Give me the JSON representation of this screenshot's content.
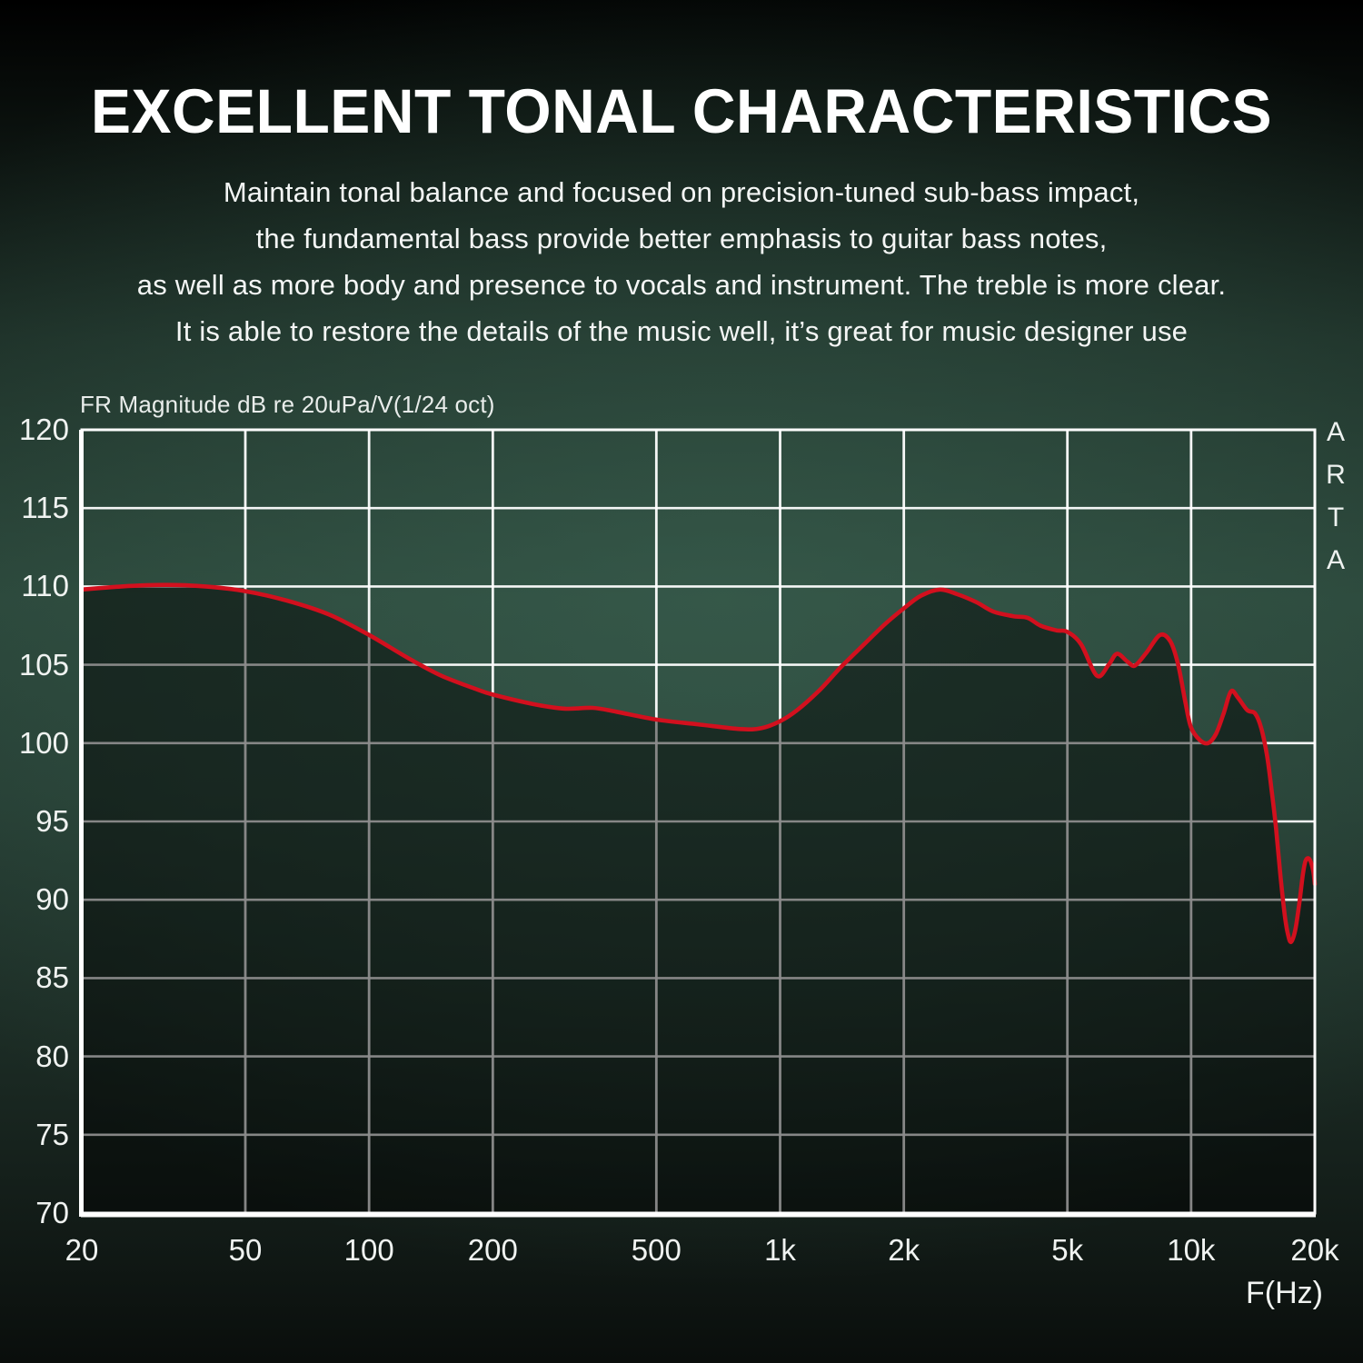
{
  "header": {
    "title": "EXCELLENT TONAL CHARACTERISTICS",
    "subtitle_lines": [
      "Maintain tonal balance and focused on precision-tuned sub-bass impact,",
      "the fundamental bass provide better emphasis to guitar bass notes,",
      "as well as more body and presence to vocals and instrument. The treble is more clear.",
      "It is able to restore the details of the music well, it’s great for music designer use"
    ]
  },
  "chart": {
    "top_label": "FR Magnitude dB re 20uPa/V(1/24 oct)",
    "x_axis_label": "F(Hz)",
    "watermark": "ARTA",
    "colors": {
      "curve": "#d2101e",
      "grid": "#ffffff",
      "under_curve_fill": "rgba(0,0,0,0.45)",
      "frame": "#ffffff"
    }
  },
  "chart_data": {
    "type": "line",
    "title": "FR Magnitude dB re 20uPa/V(1/24 oct)",
    "xlabel": "F(Hz)",
    "ylabel": "dB",
    "x_scale": "log",
    "xlim": [
      20,
      20000
    ],
    "ylim": [
      70,
      120
    ],
    "grid": true,
    "legend_position": "none",
    "x_ticks": [
      {
        "value": 20,
        "label": "20"
      },
      {
        "value": 50,
        "label": "50"
      },
      {
        "value": 100,
        "label": "100"
      },
      {
        "value": 200,
        "label": "200"
      },
      {
        "value": 500,
        "label": "500"
      },
      {
        "value": 1000,
        "label": "1k"
      },
      {
        "value": 2000,
        "label": "2k"
      },
      {
        "value": 5000,
        "label": "5k"
      },
      {
        "value": 10000,
        "label": "10k"
      },
      {
        "value": 20000,
        "label": "20k"
      }
    ],
    "y_ticks": [
      70,
      75,
      80,
      85,
      90,
      95,
      100,
      105,
      110,
      115,
      120
    ],
    "series": [
      {
        "name": "frequency-response",
        "color": "#d2101e",
        "points": [
          [
            20,
            109.8
          ],
          [
            25,
            110.0
          ],
          [
            32,
            110.1
          ],
          [
            40,
            110.0
          ],
          [
            50,
            109.7
          ],
          [
            63,
            109.1
          ],
          [
            80,
            108.2
          ],
          [
            100,
            106.9
          ],
          [
            125,
            105.4
          ],
          [
            150,
            104.3
          ],
          [
            180,
            103.5
          ],
          [
            200,
            103.1
          ],
          [
            250,
            102.5
          ],
          [
            300,
            102.2
          ],
          [
            350,
            102.25
          ],
          [
            400,
            102.0
          ],
          [
            500,
            101.5
          ],
          [
            630,
            101.2
          ],
          [
            800,
            100.9
          ],
          [
            900,
            100.95
          ],
          [
            1000,
            101.4
          ],
          [
            1100,
            102.1
          ],
          [
            1250,
            103.4
          ],
          [
            1400,
            104.8
          ],
          [
            1600,
            106.3
          ],
          [
            1800,
            107.6
          ],
          [
            2000,
            108.6
          ],
          [
            2200,
            109.4
          ],
          [
            2450,
            109.8
          ],
          [
            2700,
            109.5
          ],
          [
            3000,
            109.0
          ],
          [
            3300,
            108.4
          ],
          [
            3700,
            108.1
          ],
          [
            4000,
            108.0
          ],
          [
            4300,
            107.5
          ],
          [
            4700,
            107.2
          ],
          [
            5000,
            107.1
          ],
          [
            5400,
            106.3
          ],
          [
            5900,
            104.3
          ],
          [
            6300,
            105.0
          ],
          [
            6600,
            105.7
          ],
          [
            7000,
            105.2
          ],
          [
            7300,
            104.95
          ],
          [
            7800,
            105.8
          ],
          [
            8400,
            106.9
          ],
          [
            8900,
            106.5
          ],
          [
            9300,
            105.0
          ],
          [
            9700,
            102.5
          ],
          [
            10000,
            101.0
          ],
          [
            10500,
            100.2
          ],
          [
            11000,
            100.0
          ],
          [
            11500,
            100.6
          ],
          [
            12000,
            101.9
          ],
          [
            12500,
            103.3
          ],
          [
            13000,
            102.9
          ],
          [
            13700,
            102.1
          ],
          [
            14300,
            101.9
          ],
          [
            14800,
            101.0
          ],
          [
            15300,
            99.2
          ],
          [
            15700,
            97.0
          ],
          [
            16100,
            94.5
          ],
          [
            16500,
            91.5
          ],
          [
            16900,
            89.0
          ],
          [
            17200,
            87.8
          ],
          [
            17500,
            87.3
          ],
          [
            17900,
            88.0
          ],
          [
            18300,
            89.6
          ],
          [
            18700,
            91.6
          ],
          [
            19000,
            92.5
          ],
          [
            19400,
            92.6
          ],
          [
            19800,
            91.9
          ],
          [
            20000,
            91.0
          ]
        ]
      }
    ]
  }
}
